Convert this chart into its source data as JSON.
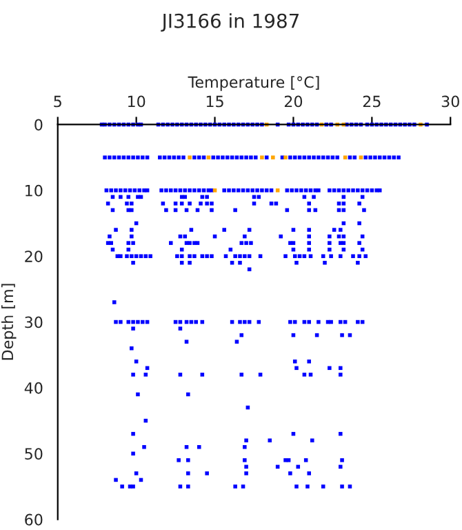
{
  "chart_data": {
    "type": "scatter",
    "title": "JI3166 in 1987",
    "xlabel": "Temperature [°C]",
    "ylabel": "Depth [m]",
    "xlim": [
      5,
      30
    ],
    "xticks": [
      5,
      10,
      15,
      20,
      25,
      30
    ],
    "ylim": [
      60,
      0
    ],
    "yticks": [
      0,
      10,
      20,
      30,
      40,
      50,
      60
    ],
    "grid": false,
    "legend": false,
    "marker": "square",
    "series": [
      {
        "color": "#0000ff",
        "x": [
          7.8,
          8.0,
          8.3,
          8.6,
          8.9,
          9.2,
          9.5,
          9.8,
          10.1,
          10.3,
          11.4,
          11.7,
          12.0,
          12.3,
          12.6,
          12.9,
          13.2,
          13.5,
          13.8,
          14.1,
          14.4,
          14.7,
          15.0,
          15.3,
          15.6,
          15.9,
          16.2,
          16.5,
          16.8,
          17.1,
          17.4,
          17.7,
          18.0,
          19.0,
          19.7,
          20.0,
          20.3,
          20.6,
          20.9,
          21.2,
          21.5,
          22.1,
          22.4,
          23.4,
          23.7,
          24.0,
          24.3,
          24.7,
          25.0,
          25.3,
          25.6,
          25.9,
          26.2,
          26.5,
          26.8,
          27.1,
          27.4,
          27.7,
          28.5
        ],
        "values": [
          0,
          0,
          0,
          0,
          0,
          0,
          0,
          0,
          0,
          0,
          0,
          0,
          0,
          0,
          0,
          0,
          0,
          0,
          0,
          0,
          0,
          0,
          0,
          0,
          0,
          0,
          0,
          0,
          0,
          0,
          0,
          0,
          0,
          0,
          0,
          0,
          0,
          0,
          0,
          0,
          0,
          0,
          0,
          0,
          0,
          0,
          0,
          0,
          0,
          0,
          0,
          0,
          0,
          0,
          0,
          0,
          0,
          0,
          0
        ]
      },
      {
        "color": "#0000ff",
        "x": [
          8.0,
          8.3,
          8.6,
          8.9,
          9.2,
          9.5,
          9.8,
          10.1,
          10.4,
          10.7,
          11.5,
          11.8,
          12.1,
          12.4,
          12.7,
          13.0,
          13.7,
          14.0,
          14.3,
          14.9,
          15.2,
          15.5,
          15.8,
          16.1,
          16.4,
          16.7,
          17.0,
          17.3,
          17.6,
          18.3,
          19.3,
          19.8,
          20.1,
          20.4,
          20.7,
          21.0,
          21.3,
          21.6,
          21.9,
          22.2,
          22.5,
          22.8,
          23.6,
          23.9,
          24.6,
          24.9,
          25.2,
          25.5,
          25.8,
          26.1,
          26.4,
          26.7
        ],
        "values": [
          5,
          5,
          5,
          5,
          5,
          5,
          5,
          5,
          5,
          5,
          5,
          5,
          5,
          5,
          5,
          5,
          5,
          5,
          5,
          5,
          5,
          5,
          5,
          5,
          5,
          5,
          5,
          5,
          5,
          5,
          5,
          5,
          5,
          5,
          5,
          5,
          5,
          5,
          5,
          5,
          5,
          5,
          5,
          5,
          5,
          5,
          5,
          5,
          5,
          5,
          5,
          5
        ]
      },
      {
        "color": "#0000ff",
        "x": [
          8.1,
          8.4,
          8.7,
          9.0,
          9.3,
          9.6,
          9.9,
          10.2,
          10.5,
          10.7,
          11.6,
          11.9,
          12.2,
          12.5,
          12.8,
          13.1,
          13.4,
          13.7,
          14.0,
          14.3,
          14.6,
          14.8,
          15.6,
          15.9,
          16.2,
          16.5,
          16.8,
          17.1,
          17.4,
          17.7,
          18.0,
          18.3,
          18.6,
          19.6,
          19.9,
          20.2,
          20.5,
          20.8,
          21.1,
          21.4,
          21.6,
          22.3,
          22.6,
          22.9,
          23.2,
          23.5,
          23.8,
          24.1,
          24.4,
          24.7,
          25.0,
          25.3,
          25.5
        ],
        "values": [
          10,
          10,
          10,
          10,
          10,
          10,
          10,
          10,
          10,
          10,
          10,
          10,
          10,
          10,
          10,
          10,
          10,
          10,
          10,
          10,
          10,
          10,
          10,
          10,
          10,
          10,
          10,
          10,
          10,
          10,
          10,
          10,
          10,
          10,
          10,
          10,
          10,
          10,
          10,
          10,
          10,
          10,
          10,
          10,
          10,
          10,
          10,
          10,
          10,
          10,
          10,
          10,
          10
        ]
      },
      {
        "color": "#0000ff",
        "x": [
          8.5,
          9.0,
          9.5,
          10.1,
          10.3,
          12.9,
          13.1,
          14.2,
          14.5,
          17.5,
          17.8,
          20.7,
          21.3,
          23.2,
          24.4
        ],
        "values": [
          11,
          11,
          11,
          11,
          11,
          11,
          11,
          11,
          11,
          11,
          11,
          11,
          11,
          11,
          11
        ]
      },
      {
        "color": "#0000ff",
        "x": [
          8.2,
          9.4,
          9.7,
          11.7,
          12.5,
          12.9,
          13.4,
          14.1,
          14.5,
          14.8,
          17.5,
          18.6,
          18.9,
          21.0,
          22.9,
          23.2,
          24.2
        ],
        "values": [
          12,
          12,
          12,
          12,
          12,
          12,
          12,
          12,
          12,
          12,
          12,
          12,
          12,
          12,
          12,
          12,
          12
        ]
      },
      {
        "color": "#0000ff",
        "x": [
          8.5,
          9.5,
          9.7,
          11.9,
          12.5,
          13.2,
          13.9,
          14.8,
          16.3,
          19.6,
          21.0,
          21.4,
          22.9,
          23.2,
          24.5
        ],
        "values": [
          13,
          13,
          13,
          13,
          13,
          13,
          13,
          13,
          13,
          13,
          13,
          13,
          13,
          13,
          13
        ]
      },
      {
        "color": "#0000ff",
        "x": [
          10.0,
          23.2,
          24.2
        ],
        "values": [
          15,
          15,
          15
        ]
      },
      {
        "color": "#0000ff",
        "x": [
          8.7,
          9.7,
          13.5,
          15.6,
          17.2,
          20.0,
          21.0,
          22.6,
          23.0
        ],
        "values": [
          16,
          16,
          16,
          16,
          16,
          16,
          16,
          16,
          16
        ]
      },
      {
        "color": "#0000ff",
        "x": [
          8.3,
          9.7,
          12.8,
          13.1,
          15.0,
          16.9,
          19.2,
          21.0,
          22.3,
          22.9,
          23.2,
          24.4
        ],
        "values": [
          17,
          17,
          17,
          17,
          17,
          17,
          17,
          17,
          17,
          17,
          17,
          17
        ]
      },
      {
        "color": "#0000ff",
        "x": [
          8.2,
          8.4,
          9.5,
          9.8,
          12.2,
          13.2,
          13.4,
          13.7,
          13.9,
          16.7,
          17.0,
          17.3,
          19.8,
          20.0,
          21.0,
          22.3,
          23.0,
          23.2,
          24.2
        ],
        "values": [
          18,
          18,
          18,
          18,
          18,
          18,
          18,
          18,
          18,
          18,
          18,
          18,
          18,
          18,
          18,
          18,
          18,
          18,
          18
        ]
      },
      {
        "color": "#0000ff",
        "x": [
          8.5,
          9.5,
          12.9,
          16.0,
          20.0,
          21.0,
          22.3,
          23.2,
          24.4
        ],
        "values": [
          19,
          19,
          19,
          19,
          19,
          19,
          19,
          19,
          19
        ]
      },
      {
        "color": "#0000ff",
        "x": [
          8.8,
          9.0,
          9.4,
          9.7,
          10.0,
          10.3,
          10.6,
          10.9,
          12.6,
          12.9,
          13.4,
          13.7,
          14.2,
          14.5,
          14.8,
          15.7,
          16.3,
          16.6,
          16.9,
          17.2,
          17.9,
          19.5,
          20.1,
          20.4,
          20.7,
          21.1,
          21.9,
          22.4,
          23.0,
          23.8,
          24.2,
          24.6
        ],
        "values": [
          20,
          20,
          20,
          20,
          20,
          20,
          20,
          20,
          20,
          20,
          20,
          20,
          20,
          20,
          20,
          20,
          20,
          20,
          20,
          20,
          20,
          20,
          20,
          20,
          20,
          20,
          20,
          20,
          20,
          20,
          20,
          20
        ]
      },
      {
        "color": "#0000ff",
        "x": [
          9.8,
          12.9,
          13.4,
          16.1,
          16.6,
          20.2,
          22.0,
          24.1
        ],
        "values": [
          21,
          21,
          21,
          21,
          21,
          21,
          21,
          21
        ]
      },
      {
        "color": "#0000ff",
        "x": [
          17.2,
          8.6
        ],
        "values": [
          22,
          27
        ]
      },
      {
        "color": "#0000ff",
        "x": [
          8.7,
          9.0,
          9.5,
          9.8,
          10.1,
          10.4,
          10.7,
          12.5,
          12.8,
          13.2,
          13.5,
          13.8,
          14.2,
          16.1,
          16.6,
          16.9,
          17.2,
          17.8,
          19.8,
          20.1,
          20.7,
          21.0,
          21.6,
          22.2,
          22.4,
          23.0,
          23.3,
          24.1,
          24.4
        ],
        "values": [
          30,
          30,
          30,
          30,
          30,
          30,
          30,
          30,
          30,
          30,
          30,
          30,
          30,
          30,
          30,
          30,
          30,
          30,
          30,
          30,
          30,
          30,
          30,
          30,
          30,
          30,
          30,
          30,
          30
        ]
      },
      {
        "color": "#0000ff",
        "x": [
          9.8,
          12.8,
          16.7,
          20.0,
          21.5,
          23.1,
          23.6,
          13.2,
          16.4,
          9.7
        ],
        "values": [
          31,
          31,
          32,
          32,
          32,
          32,
          32,
          33,
          33,
          34
        ]
      },
      {
        "color": "#0000ff",
        "x": [
          10.0,
          20.1,
          21.0,
          10.7,
          20.2,
          22.3,
          23.0
        ],
        "values": [
          36,
          36,
          36,
          37,
          37,
          37,
          37
        ]
      },
      {
        "color": "#0000ff",
        "x": [
          9.8,
          10.6,
          12.8,
          14.2,
          16.7,
          17.9,
          20.7,
          21.1,
          23.0
        ],
        "values": [
          38,
          38,
          38,
          38,
          38,
          38,
          38,
          38,
          38
        ]
      },
      {
        "color": "#0000ff",
        "x": [
          10.1,
          13.3,
          17.1,
          10.6,
          9.8,
          20.0,
          23.0,
          17.0,
          18.5,
          21.2
        ],
        "values": [
          41,
          41,
          43,
          45,
          47,
          47,
          47,
          48,
          48,
          48
        ]
      },
      {
        "color": "#0000ff",
        "x": [
          10.5,
          13.2,
          14.0,
          16.9,
          9.8
        ],
        "values": [
          49,
          49,
          49,
          49,
          50
        ]
      },
      {
        "color": "#0000ff",
        "x": [
          12.7,
          13.3,
          16.9,
          19.5,
          19.7,
          20.8,
          23.1,
          17.0,
          19.0,
          20.3,
          23.0
        ],
        "values": [
          51,
          51,
          51,
          51,
          51,
          51,
          51,
          52,
          52,
          52,
          52
        ]
      },
      {
        "color": "#0000ff",
        "x": [
          10.0,
          13.3,
          14.5,
          17.0,
          19.8,
          21.0,
          8.7,
          10.3
        ],
        "values": [
          53,
          53,
          53,
          53,
          53,
          53,
          54,
          54
        ]
      },
      {
        "color": "#0000ff",
        "x": [
          9.1,
          9.6,
          9.8,
          12.8,
          13.3,
          16.3,
          16.8,
          20.2,
          20.9,
          21.9,
          23.1,
          23.6
        ],
        "values": [
          55,
          55,
          55,
          55,
          55,
          55,
          55,
          55,
          55,
          55,
          55,
          55
        ]
      },
      {
        "color": "#ffa500",
        "x": [
          18.3,
          21.8,
          22.8,
          23.2,
          28.1,
          13.4,
          14.6,
          18.0,
          18.7,
          19.5,
          23.3,
          24.3,
          15.0,
          19.0
        ],
        "values": [
          0,
          0,
          0,
          0,
          0,
          5,
          5,
          5,
          5,
          5,
          5,
          5,
          10,
          10
        ]
      }
    ]
  }
}
